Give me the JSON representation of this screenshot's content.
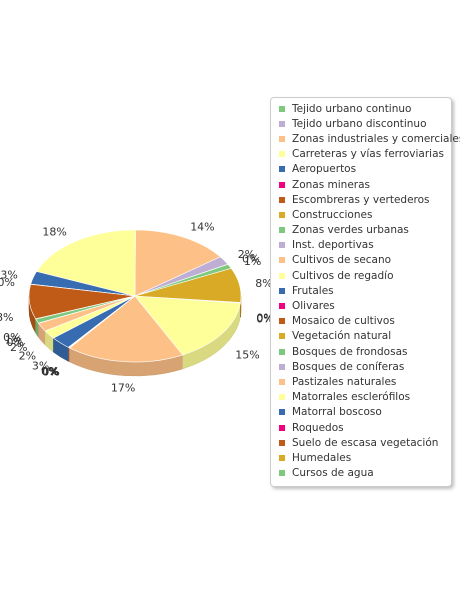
{
  "chart_data": {
    "type": "pie",
    "title": "",
    "legend_position": "right",
    "labels": [
      "Tejido urbano continuo",
      "Tejido urbano discontinuo",
      "Zonas industriales y comerciales",
      "Carreteras y vías ferroviarias",
      "Aeropuertos",
      "Zonas mineras",
      "Escombreras y vertederos",
      "Construcciones",
      "Zonas verdes urbanas",
      "Inst. deportivas",
      "Cultivos de secano",
      "Cultivos de regadío",
      "Frutales",
      "Olivares",
      "Mosaico de cultivos",
      "Vegetación natural",
      "Bosques de frondosas",
      "Bosques de coníferas",
      "Pastizales naturales",
      "Matorrales esclerófilos",
      "Matorral boscoso",
      "Roquedos",
      "Suelo de escasa vegetación",
      "Humedales",
      "Cursos de agua"
    ],
    "values": [
      0,
      2,
      14,
      18,
      3,
      0,
      8,
      0,
      1,
      0,
      2,
      2,
      3,
      0,
      0,
      0,
      0,
      0,
      17,
      15,
      0,
      0,
      0,
      8,
      1
    ],
    "data_labels": [
      "0%",
      "2%",
      "14%",
      "18%",
      "3%",
      "0%",
      "8%",
      "0%",
      "1%",
      "0%",
      "2%",
      "2%",
      "3%",
      "0%",
      "0%",
      "0%",
      "0%",
      "0%",
      "17%",
      "15%",
      "0%",
      "0%",
      "0%",
      "8%",
      "1%"
    ],
    "colors": [
      "#7fc97f",
      "#beaed4",
      "#fdc086",
      "#ffff99",
      "#386cb0",
      "#f0027f",
      "#bf5b17",
      "#d9aa26",
      "#7fc97f",
      "#beaed4",
      "#fdc086",
      "#ffff99",
      "#386cb0",
      "#f0027f",
      "#bf5b17",
      "#d9aa26",
      "#7fc97f",
      "#beaed4",
      "#fdc086",
      "#ffff99",
      "#386cb0",
      "#f0027f",
      "#bf5b17",
      "#d9aa26",
      "#7fc97f"
    ]
  }
}
